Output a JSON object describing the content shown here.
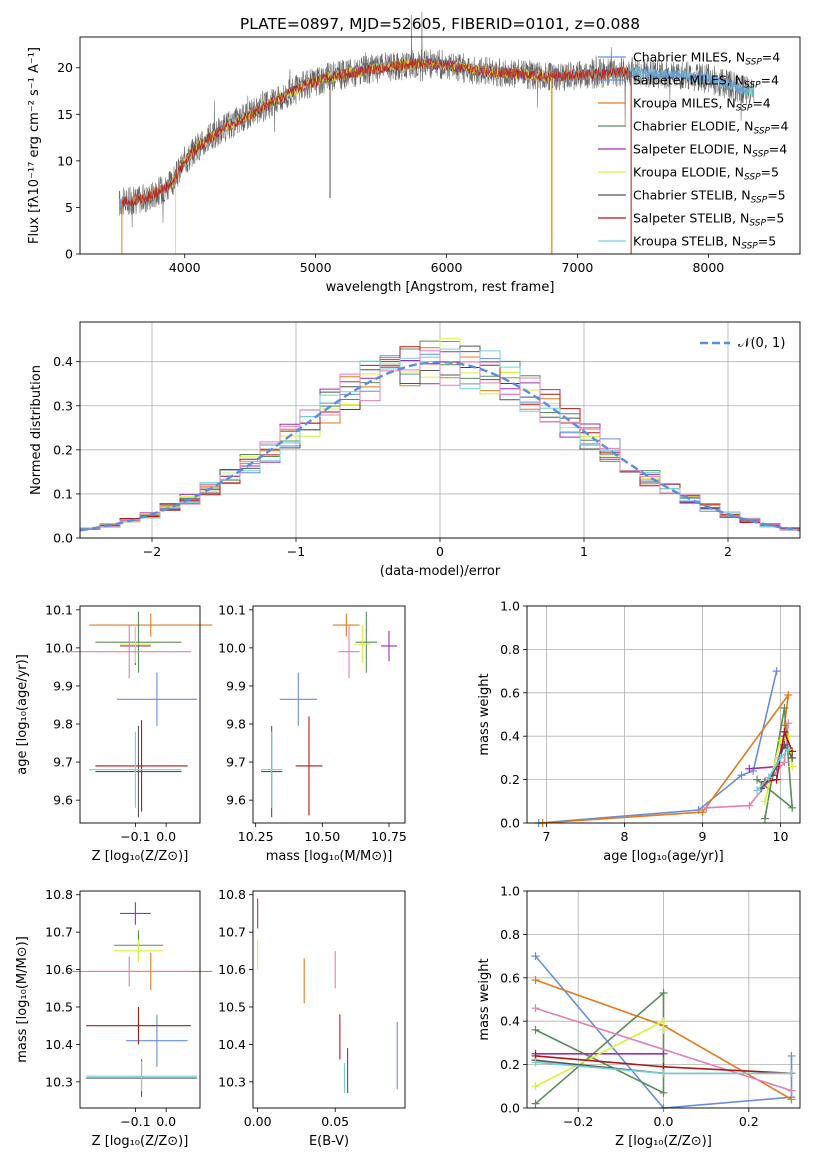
{
  "title": "PLATE=0897, MJD=52605, FIBERID=0101, z=0.088",
  "colors": {
    "chabrier_miles": "#6a8fd8",
    "salpeter_miles": "#6a8fd8",
    "kroupa_miles": "#e07b20",
    "chabrier_elodie": "#5b8c5b",
    "salpeter_elodie": "#9b30b0",
    "kroupa_elodie": "#d8f040",
    "chabrier_stelib": "#555555",
    "salpeter_stelib": "#b01818",
    "kroupa_stelib": "#70d0d8",
    "pink": "#e080b8",
    "normal": "#5b8de0"
  },
  "chart_data": [
    {
      "id": "spectrum",
      "type": "line",
      "title": "PLATE=0897, MJD=52605, FIBERID=0101, z=0.088",
      "xlabel": "wavelength [Angstrom, rest frame]",
      "ylabel": "Flux [fλ10⁻¹⁷ erg cm⁻² s⁻¹ A⁻¹]",
      "xlim": [
        3200,
        8700
      ],
      "ylim": [
        0,
        23.3
      ],
      "xticks": [
        "4000",
        "5000",
        "6000",
        "7000",
        "8000"
      ],
      "yticks": [
        "0",
        "5",
        "10",
        "15",
        "20"
      ],
      "legend_position": "top-right",
      "legend": [
        "Chabrier MILES, N_SSP=4",
        "Salpeter MILES, N_SSP=4",
        "Kroupa MILES, N_SSP=4",
        "Chabrier ELODIE, N_SSP=4",
        "Salpeter ELODIE, N_SSP=4",
        "Kroupa ELODIE, N_SSP=5",
        "Chabrier STELIB, N_SSP=5",
        "Salpeter STELIB, N_SSP=5",
        "Kroupa STELIB, N_SSP=5"
      ],
      "continuum": [
        [
          3500,
          5.5
        ],
        [
          3700,
          6.0
        ],
        [
          3900,
          7.5
        ],
        [
          4000,
          10.0
        ],
        [
          4100,
          11.5
        ],
        [
          4300,
          13.5
        ],
        [
          4500,
          15.0
        ],
        [
          4700,
          16.5
        ],
        [
          4900,
          18.0
        ],
        [
          5100,
          19.0
        ],
        [
          5300,
          19.5
        ],
        [
          5500,
          20.0
        ],
        [
          5800,
          20.5
        ],
        [
          6000,
          20.3
        ],
        [
          6200,
          19.8
        ],
        [
          6400,
          19.5
        ],
        [
          6600,
          19.3
        ],
        [
          6800,
          19.0
        ],
        [
          7000,
          19.2
        ],
        [
          7200,
          19.4
        ],
        [
          7400,
          19.6
        ],
        [
          7600,
          19.3
        ],
        [
          7800,
          19.2
        ],
        [
          8000,
          18.8
        ],
        [
          8200,
          18.0
        ],
        [
          8300,
          17.5
        ]
      ]
    },
    {
      "id": "histogram",
      "type": "bar",
      "xlabel": "(data-model)/error",
      "ylabel": "Normed distribution",
      "xlim": [
        -2.5,
        2.5
      ],
      "ylim": [
        0,
        0.49
      ],
      "xticks": [
        "−2",
        "−1",
        "0",
        "1",
        "2"
      ],
      "yticks": [
        "0.0",
        "0.1",
        "0.2",
        "0.3",
        "0.4"
      ],
      "legend": [
        "𝒩(0, 1)"
      ],
      "legend_position": "top-right",
      "grid": true
    },
    {
      "id": "age_vs_Z",
      "type": "scatter",
      "xlabel": "Z [log₁₀(Z/Z⊙)]",
      "ylabel": "age  [log₁₀(age/yr)]",
      "xlim": [
        -0.28,
        0.11
      ],
      "ylim": [
        9.54,
        10.11
      ],
      "xticks": [
        "−0.1",
        "0.0"
      ],
      "yticks": [
        "9.6",
        "9.7",
        "9.8",
        "9.9",
        "10.0",
        "10.1"
      ],
      "points": [
        {
          "x": -0.03,
          "y": 9.865,
          "xerr": 0.13,
          "yerr": 0.07,
          "c": "chabrier_miles"
        },
        {
          "x": -0.05,
          "y": 10.06,
          "xerr": 0.2,
          "yerr": 0.03,
          "c": "kroupa_miles"
        },
        {
          "x": -0.09,
          "y": 10.015,
          "xerr": 0.14,
          "yerr": 0.08,
          "c": "chabrier_elodie"
        },
        {
          "x": -0.1,
          "y": 10.005,
          "xerr": 0.05,
          "yerr": 0.05,
          "c": "salpeter_elodie"
        },
        {
          "x": -0.1,
          "y": 10.01,
          "xerr": 0.05,
          "yerr": 0.05,
          "c": "kroupa_elodie"
        },
        {
          "x": -0.12,
          "y": 9.99,
          "xerr": 0.2,
          "yerr": 0.07,
          "c": "pink"
        },
        {
          "x": -0.09,
          "y": 9.675,
          "xerr": 0.14,
          "yerr": 0.12,
          "c": "chabrier_stelib"
        },
        {
          "x": -0.08,
          "y": 9.69,
          "xerr": 0.15,
          "yerr": 0.12,
          "c": "salpeter_stelib"
        },
        {
          "x": -0.1,
          "y": 9.68,
          "xerr": 0.15,
          "yerr": 0.1,
          "c": "kroupa_stelib"
        }
      ]
    },
    {
      "id": "age_vs_mass",
      "type": "scatter",
      "xlabel": "mass [log₁₀(M/M⊙)]",
      "ylabel": "",
      "xlim": [
        10.24,
        10.81
      ],
      "ylim": [
        9.54,
        10.11
      ],
      "xticks": [
        "10.25",
        "10.50",
        "10.75"
      ],
      "yticks": [
        "9.6",
        "9.7",
        "9.8",
        "9.9",
        "10.0",
        "10.1"
      ],
      "points": [
        {
          "x": 10.41,
          "y": 9.865,
          "xerr": 0.07,
          "yerr": 0.07,
          "c": "chabrier_miles"
        },
        {
          "x": 10.59,
          "y": 10.06,
          "xerr": 0.05,
          "yerr": 0.03,
          "c": "kroupa_miles"
        },
        {
          "x": 10.665,
          "y": 10.015,
          "xerr": 0.04,
          "yerr": 0.08,
          "c": "chabrier_elodie"
        },
        {
          "x": 10.75,
          "y": 10.005,
          "xerr": 0.03,
          "yerr": 0.04,
          "c": "salpeter_elodie"
        },
        {
          "x": 10.65,
          "y": 10.01,
          "xerr": 0.03,
          "yerr": 0.05,
          "c": "kroupa_elodie"
        },
        {
          "x": 10.6,
          "y": 9.99,
          "xerr": 0.04,
          "yerr": 0.07,
          "c": "pink"
        },
        {
          "x": 10.31,
          "y": 9.675,
          "xerr": 0.04,
          "yerr": 0.12,
          "c": "chabrier_stelib"
        },
        {
          "x": 10.45,
          "y": 9.69,
          "xerr": 0.05,
          "yerr": 0.13,
          "c": "salpeter_stelib"
        },
        {
          "x": 10.31,
          "y": 9.68,
          "xerr": 0.04,
          "yerr": 0.1,
          "c": "kroupa_stelib"
        }
      ]
    },
    {
      "id": "weight_vs_age",
      "type": "line",
      "xlabel": "age  [log₁₀(age/yr)]",
      "ylabel": "mass weight",
      "xlim": [
        6.75,
        10.25
      ],
      "ylim": [
        0,
        1.0
      ],
      "xticks": [
        "7",
        "8",
        "9",
        "10"
      ],
      "yticks": [
        "0.0",
        "0.2",
        "0.4",
        "0.6",
        "0.8",
        "1.0"
      ],
      "grid": true,
      "series": [
        {
          "c": "chabrier_miles",
          "x": [
            6.9,
            8.95,
            9.5,
            9.65,
            9.95
          ],
          "y": [
            0.0,
            0.06,
            0.22,
            0.24,
            0.7
          ]
        },
        {
          "c": "kroupa_miles",
          "x": [
            6.95,
            9.0,
            10.1,
            10.05,
            10.1
          ],
          "y": [
            0.0,
            0.05,
            0.59,
            0.45,
            0.4
          ]
        },
        {
          "c": "chabrier_elodie",
          "x": [
            9.8,
            10.05,
            10.15,
            9.7
          ],
          "y": [
            0.02,
            0.53,
            0.07,
            0.2
          ]
        },
        {
          "c": "salpeter_elodie",
          "x": [
            9.6,
            9.95,
            10.05
          ],
          "y": [
            0.25,
            0.26,
            0.4
          ]
        },
        {
          "c": "kroupa_elodie",
          "x": [
            9.8,
            10.0,
            10.1,
            10.15
          ],
          "y": [
            0.1,
            0.38,
            0.4,
            0.26
          ]
        },
        {
          "c": "pink",
          "x": [
            9.05,
            9.6,
            10.05,
            10.1
          ],
          "y": [
            0.07,
            0.08,
            0.28,
            0.46
          ]
        },
        {
          "c": "chabrier_stelib",
          "x": [
            9.75,
            9.9,
            10.05,
            10.15
          ],
          "y": [
            0.16,
            0.22,
            0.36,
            0.3
          ]
        },
        {
          "c": "salpeter_stelib",
          "x": [
            9.8,
            9.95,
            10.05,
            10.15
          ],
          "y": [
            0.19,
            0.2,
            0.42,
            0.33
          ]
        },
        {
          "c": "kroupa_stelib",
          "x": [
            9.7,
            9.85,
            10.0,
            10.1
          ],
          "y": [
            0.15,
            0.21,
            0.3,
            0.34
          ]
        }
      ]
    },
    {
      "id": "mass_vs_Z",
      "type": "scatter",
      "xlabel": "Z [log₁₀(Z/Z⊙)]",
      "ylabel": "mass [log₁₀(M/M⊙)]",
      "xlim": [
        -0.28,
        0.11
      ],
      "ylim": [
        10.23,
        10.81
      ],
      "xticks": [
        "−0.1",
        "0.0"
      ],
      "yticks": [
        "10.3",
        "10.4",
        "10.5",
        "10.6",
        "10.7",
        "10.8"
      ],
      "points": [
        {
          "x": -0.03,
          "y": 10.41,
          "xerr": 0.1,
          "yerr": 0.07,
          "c": "chabrier_miles"
        },
        {
          "x": -0.05,
          "y": 10.595,
          "xerr": 0.2,
          "yerr": 0.05,
          "c": "kroupa_miles"
        },
        {
          "x": -0.09,
          "y": 10.665,
          "xerr": 0.08,
          "yerr": 0.04,
          "c": "chabrier_elodie"
        },
        {
          "x": -0.1,
          "y": 10.75,
          "xerr": 0.05,
          "yerr": 0.03,
          "c": "salpeter_elodie"
        },
        {
          "x": -0.09,
          "y": 10.65,
          "xerr": 0.08,
          "yerr": 0.03,
          "c": "kroupa_elodie"
        },
        {
          "x": -0.12,
          "y": 10.595,
          "xerr": 0.2,
          "yerr": 0.04,
          "c": "pink"
        },
        {
          "x": -0.08,
          "y": 10.31,
          "xerr": 0.18,
          "yerr": 0.05,
          "c": "chabrier_stelib"
        },
        {
          "x": -0.09,
          "y": 10.45,
          "xerr": 0.17,
          "yerr": 0.05,
          "c": "salpeter_stelib"
        },
        {
          "x": -0.08,
          "y": 10.315,
          "xerr": 0.18,
          "yerr": 0.04,
          "c": "kroupa_stelib"
        }
      ]
    },
    {
      "id": "mass_vs_ebv",
      "type": "scatter",
      "xlabel": "E(B-V)",
      "ylabel": "",
      "xlim": [
        -0.003,
        0.095
      ],
      "ylim": [
        10.23,
        10.81
      ],
      "xticks": [
        "0.00",
        "0.05"
      ],
      "yticks": [
        "10.3",
        "10.4",
        "10.5",
        "10.6",
        "10.7",
        "10.8"
      ],
      "points": [
        {
          "x": 0.09,
          "y": 10.37,
          "yerr": 0.09,
          "c": "chabrier_miles"
        },
        {
          "x": 0.03,
          "y": 10.57,
          "yerr": 0.06,
          "c": "kroupa_miles"
        },
        {
          "x": 0.0,
          "y": 10.64,
          "yerr": 0.04,
          "c": "kroupa_elodie"
        },
        {
          "x": 0.0,
          "y": 10.75,
          "yerr": 0.04,
          "c": "salpeter_elodie"
        },
        {
          "x": 0.05,
          "y": 10.6,
          "yerr": 0.05,
          "c": "pink"
        },
        {
          "x": 0.053,
          "y": 10.42,
          "yerr": 0.06,
          "c": "salpeter_stelib"
        },
        {
          "x": 0.058,
          "y": 10.33,
          "yerr": 0.06,
          "c": "chabrier_stelib"
        },
        {
          "x": 0.056,
          "y": 10.31,
          "yerr": 0.04,
          "c": "kroupa_stelib"
        }
      ]
    },
    {
      "id": "weight_vs_Z",
      "type": "line",
      "xlabel": "Z [log₁₀(Z/Z⊙)]",
      "ylabel": "mass weight",
      "xlim": [
        -0.32,
        0.32
      ],
      "ylim": [
        0,
        1.0
      ],
      "xticks": [
        "−0.2",
        "0.0",
        "0.2"
      ],
      "yticks": [
        "0.0",
        "0.2",
        "0.4",
        "0.6",
        "0.8",
        "1.0"
      ],
      "grid": true,
      "series": [
        {
          "c": "chabrier_miles",
          "x": [
            -0.3,
            0.0,
            0.3,
            0.3
          ],
          "y": [
            0.7,
            0.0,
            0.05,
            0.24
          ]
        },
        {
          "c": "kroupa_miles",
          "x": [
            -0.3,
            0.0,
            0.3
          ],
          "y": [
            0.59,
            0.38,
            0.04
          ]
        },
        {
          "c": "chabrier_elodie",
          "x": [
            -0.3,
            0.0,
            0.0,
            -0.3
          ],
          "y": [
            0.02,
            0.53,
            0.07,
            0.36
          ]
        },
        {
          "c": "salpeter_elodie",
          "x": [
            -0.3,
            0.0
          ],
          "y": [
            0.25,
            0.25
          ]
        },
        {
          "c": "kroupa_elodie",
          "x": [
            -0.3,
            0.0,
            0.0
          ],
          "y": [
            0.1,
            0.4,
            0.36
          ]
        },
        {
          "c": "pink",
          "x": [
            -0.3,
            0.3
          ],
          "y": [
            0.46,
            0.08
          ]
        },
        {
          "c": "chabrier_stelib",
          "x": [
            -0.3,
            0.0,
            0.3
          ],
          "y": [
            0.22,
            0.16,
            0.16
          ]
        },
        {
          "c": "salpeter_stelib",
          "x": [
            -0.3,
            0.0,
            0.3
          ],
          "y": [
            0.24,
            0.19,
            0.16
          ]
        },
        {
          "c": "kroupa_stelib",
          "x": [
            -0.3,
            0.0,
            0.3
          ],
          "y": [
            0.21,
            0.16,
            0.16
          ]
        }
      ]
    }
  ]
}
